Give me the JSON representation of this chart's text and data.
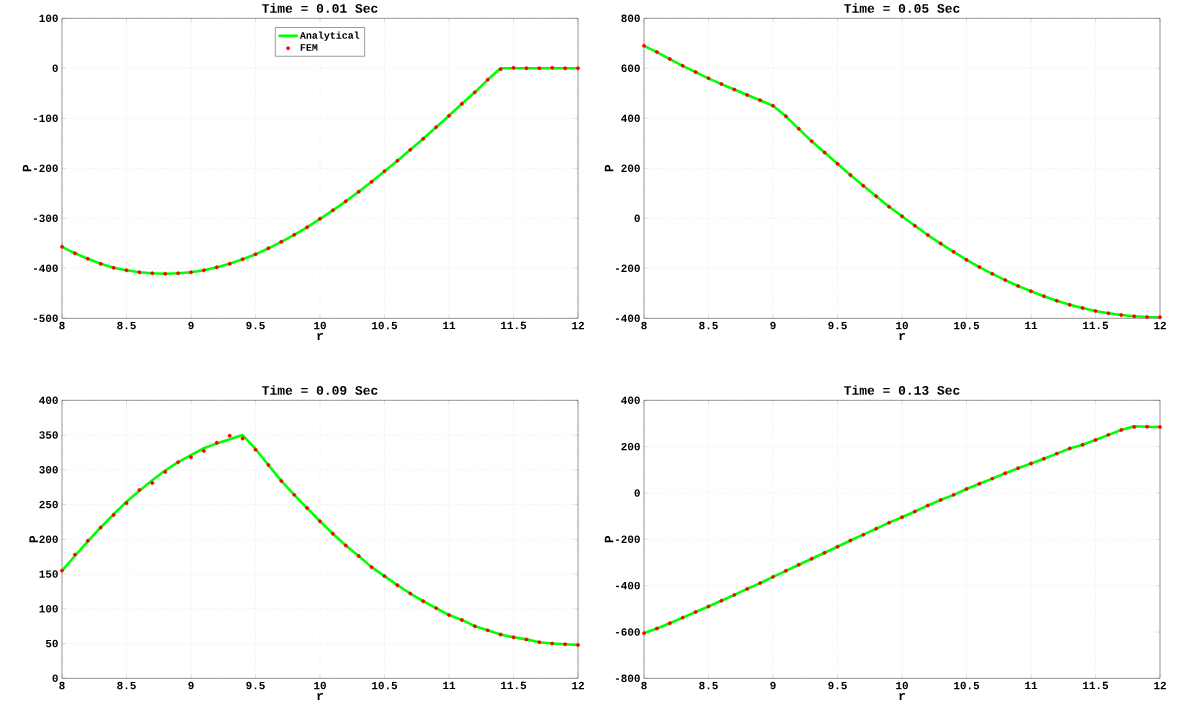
{
  "chart_data": [
    {
      "type": "line",
      "title": "Time = 0.01 Sec",
      "xlabel": "r",
      "ylabel": "P",
      "xlim": [
        8,
        12
      ],
      "ylim": [
        -500,
        100
      ],
      "xticks": [
        8,
        8.5,
        9,
        9.5,
        10,
        10.5,
        11,
        11.5,
        12
      ],
      "yticks": [
        -500,
        -400,
        -300,
        -200,
        -100,
        0,
        100
      ],
      "grid": true,
      "legend": "top",
      "line_style": "solid",
      "x": [
        8,
        8.1,
        8.2,
        8.3,
        8.4,
        8.5,
        8.6,
        8.7,
        8.8,
        8.9,
        9,
        9.1,
        9.2,
        9.3,
        9.4,
        9.5,
        9.6,
        9.7,
        9.8,
        9.9,
        10,
        10.1,
        10.2,
        10.3,
        10.4,
        10.5,
        10.6,
        10.7,
        10.8,
        10.9,
        11,
        11.1,
        11.2,
        11.3,
        11.4,
        11.5,
        11.6,
        11.7,
        11.8,
        11.9,
        12
      ],
      "series": [
        {
          "name": "Analytical",
          "type": "line",
          "marker": "none",
          "color": "#00ff00",
          "values": [
            -357,
            -370,
            -381,
            -391,
            -399,
            -404,
            -408,
            -410,
            -411,
            -410,
            -408,
            -404,
            -398,
            -391,
            -382,
            -372,
            -360,
            -347,
            -333,
            -318,
            -301,
            -284,
            -266,
            -247,
            -227,
            -206,
            -185,
            -163,
            -141,
            -118,
            -95,
            -71,
            -48,
            -23,
            0,
            0,
            0,
            0,
            0,
            0,
            0
          ]
        },
        {
          "name": "FEM",
          "type": "scatter",
          "marker": "circle",
          "color": "#ff0000",
          "values": [
            -357,
            -370,
            -381,
            -391,
            -399,
            -404,
            -408,
            -410,
            -411,
            -410,
            -408,
            -404,
            -398,
            -391,
            -382,
            -372,
            -360,
            -347,
            -333,
            -318,
            -301,
            -284,
            -266,
            -247,
            -227,
            -206,
            -185,
            -163,
            -141,
            -118,
            -95,
            -71,
            -48,
            -23,
            -2,
            1,
            0,
            0,
            1,
            0,
            0
          ]
        }
      ]
    },
    {
      "type": "line",
      "title": "Time = 0.05 Sec",
      "xlabel": "r",
      "ylabel": "P",
      "xlim": [
        8,
        12
      ],
      "ylim": [
        -400,
        800
      ],
      "xticks": [
        8,
        8.5,
        9,
        9.5,
        10,
        10.5,
        11,
        11.5,
        12
      ],
      "yticks": [
        -400,
        -200,
        0,
        200,
        400,
        600,
        800
      ],
      "grid": true,
      "line_style": "solid",
      "x": [
        8,
        8.1,
        8.2,
        8.3,
        8.4,
        8.5,
        8.6,
        8.7,
        8.8,
        8.9,
        9,
        9.1,
        9.2,
        9.3,
        9.4,
        9.5,
        9.6,
        9.7,
        9.8,
        9.9,
        10,
        10.1,
        10.2,
        10.3,
        10.4,
        10.5,
        10.6,
        10.7,
        10.8,
        10.9,
        11,
        11.1,
        11.2,
        11.3,
        11.4,
        11.5,
        11.6,
        11.7,
        11.8,
        11.9,
        12
      ],
      "series": [
        {
          "type": "line",
          "marker": "none",
          "color": "#00ff00",
          "values": [
            690,
            665,
            637,
            610,
            585,
            560,
            537,
            515,
            493,
            472,
            450,
            408,
            358,
            308,
            263,
            218,
            173,
            130,
            88,
            46,
            8,
            -30,
            -67,
            -101,
            -134,
            -166,
            -195,
            -222,
            -247,
            -271,
            -292,
            -312,
            -330,
            -346,
            -359,
            -371,
            -380,
            -387,
            -392,
            -395,
            -396
          ]
        },
        {
          "type": "scatter",
          "marker": "circle",
          "color": "#ff0000",
          "values": [
            690,
            665,
            637,
            610,
            585,
            560,
            537,
            515,
            493,
            472,
            450,
            408,
            358,
            308,
            263,
            218,
            173,
            130,
            88,
            46,
            8,
            -30,
            -67,
            -101,
            -134,
            -166,
            -195,
            -222,
            -247,
            -271,
            -292,
            -312,
            -330,
            -346,
            -359,
            -371,
            -380,
            -387,
            -392,
            -395,
            -396
          ]
        }
      ]
    },
    {
      "type": "line",
      "title": "Time = 0.09 Sec",
      "xlabel": "r",
      "ylabel": "P",
      "xlim": [
        8,
        12
      ],
      "ylim": [
        0,
        400
      ],
      "xticks": [
        8,
        8.5,
        9,
        9.5,
        10,
        10.5,
        11,
        11.5,
        12
      ],
      "yticks": [
        0,
        50,
        100,
        150,
        200,
        250,
        300,
        350,
        400
      ],
      "grid": true,
      "line_style": "solid",
      "x": [
        8,
        8.1,
        8.2,
        8.3,
        8.4,
        8.5,
        8.6,
        8.7,
        8.8,
        8.9,
        9,
        9.1,
        9.2,
        9.3,
        9.4,
        9.5,
        9.6,
        9.7,
        9.8,
        9.9,
        10,
        10.1,
        10.2,
        10.3,
        10.4,
        10.5,
        10.6,
        10.7,
        10.8,
        10.9,
        11,
        11.1,
        11.2,
        11.3,
        11.4,
        11.5,
        11.6,
        11.7,
        11.8,
        11.9,
        12
      ],
      "series": [
        {
          "type": "line",
          "marker": "none",
          "color": "#00ff00",
          "values": [
            155,
            176,
            197,
            217,
            236,
            254,
            270,
            285,
            299,
            311,
            321,
            331,
            338,
            344,
            350,
            330,
            307,
            284,
            264,
            245,
            226,
            208,
            191,
            176,
            160,
            147,
            134,
            122,
            111,
            101,
            91,
            84,
            75,
            69,
            63,
            59,
            56,
            52,
            50,
            49,
            48
          ]
        },
        {
          "type": "scatter",
          "marker": "circle",
          "color": "#ff0000",
          "values": [
            155,
            178,
            198,
            217,
            235,
            252,
            271,
            281,
            297,
            311,
            318,
            327,
            339,
            349,
            345,
            329,
            307,
            284,
            264,
            245,
            226,
            208,
            191,
            176,
            160,
            147,
            134,
            122,
            111,
            101,
            91,
            84,
            75,
            69,
            63,
            59,
            56,
            52,
            50,
            49,
            48
          ]
        }
      ]
    },
    {
      "type": "line",
      "title": "Time = 0.13 Sec",
      "xlabel": "r",
      "ylabel": "P",
      "xlim": [
        8,
        12
      ],
      "ylim": [
        -800,
        400
      ],
      "xticks": [
        8,
        8.5,
        9,
        9.5,
        10,
        10.5,
        11,
        11.5,
        12
      ],
      "yticks": [
        -800,
        -600,
        -400,
        -200,
        0,
        200,
        400
      ],
      "grid": true,
      "line_style": "solid",
      "x": [
        8,
        8.1,
        8.2,
        8.3,
        8.4,
        8.5,
        8.6,
        8.7,
        8.8,
        8.9,
        9,
        9.1,
        9.2,
        9.3,
        9.4,
        9.5,
        9.6,
        9.7,
        9.8,
        9.9,
        10,
        10.1,
        10.2,
        10.3,
        10.4,
        10.5,
        10.6,
        10.7,
        10.8,
        10.9,
        11,
        11.1,
        11.2,
        11.3,
        11.4,
        11.5,
        11.6,
        11.7,
        11.8,
        11.9,
        12
      ],
      "series": [
        {
          "type": "line",
          "marker": "none",
          "color": "#00ff00",
          "values": [
            -605,
            -585,
            -562,
            -538,
            -514,
            -490,
            -465,
            -440,
            -414,
            -389,
            -362,
            -336,
            -310,
            -284,
            -258,
            -232,
            -205,
            -180,
            -154,
            -128,
            -105,
            -80,
            -54,
            -30,
            -8,
            17,
            40,
            62,
            85,
            107,
            127,
            148,
            170,
            192,
            208,
            229,
            251,
            272,
            288,
            286,
            285
          ]
        },
        {
          "type": "scatter",
          "marker": "circle",
          "color": "#ff0000",
          "values": [
            -605,
            -585,
            -562,
            -538,
            -514,
            -490,
            -465,
            -440,
            -414,
            -389,
            -362,
            -336,
            -310,
            -284,
            -258,
            -232,
            -205,
            -180,
            -154,
            -128,
            -105,
            -80,
            -54,
            -30,
            -8,
            17,
            40,
            62,
            85,
            107,
            127,
            148,
            170,
            192,
            208,
            229,
            251,
            272,
            285,
            286,
            285
          ]
        }
      ]
    }
  ]
}
